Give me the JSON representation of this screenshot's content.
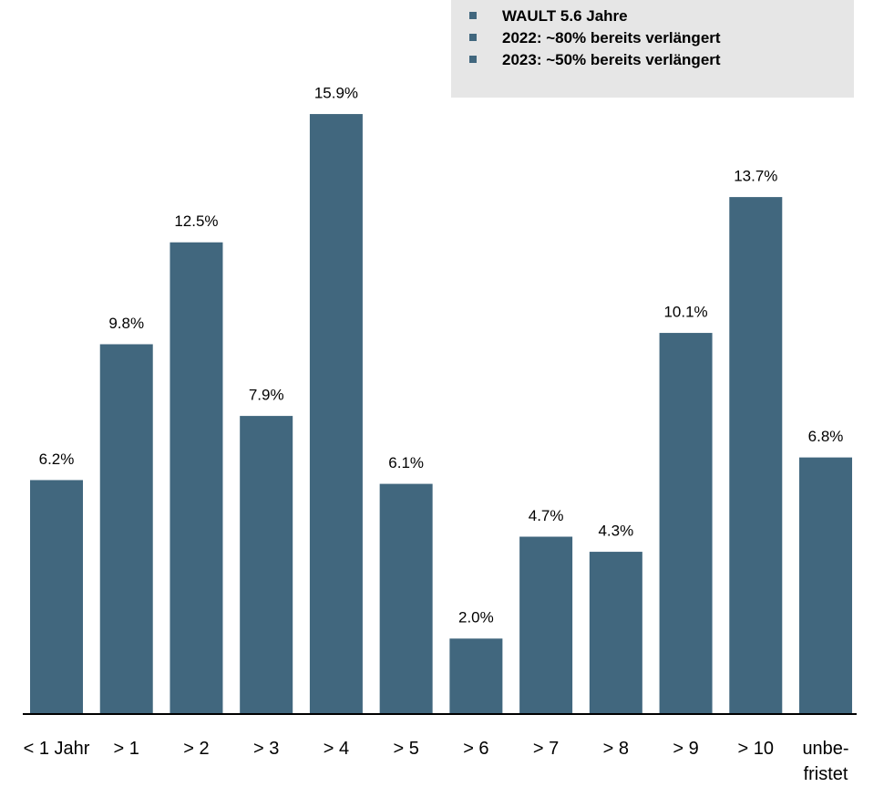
{
  "chart_data": {
    "type": "bar",
    "annotations": [
      "WAULT 5.6 Jahre",
      "2022: ~80% bereits verlängert",
      "2023: ~50% bereits verlängert"
    ],
    "categories": [
      "< 1 Jahr",
      "> 1",
      "> 2",
      "> 3",
      "> 4",
      "> 5",
      "> 6",
      "> 7",
      "> 8",
      "> 9",
      "> 10",
      "unbe-\nfristet"
    ],
    "values": [
      6.2,
      9.8,
      12.5,
      7.9,
      15.9,
      6.1,
      2.0,
      4.7,
      4.3,
      10.1,
      13.7,
      6.8
    ],
    "value_labels": [
      "6.2%",
      "9.8%",
      "12.5%",
      "7.9%",
      "15.9%",
      "6.1%",
      "2.0%",
      "4.7%",
      "4.3%",
      "10.1%",
      "13.7%",
      "6.8%"
    ],
    "color": "#41677e",
    "ylim": [
      0,
      16
    ]
  }
}
